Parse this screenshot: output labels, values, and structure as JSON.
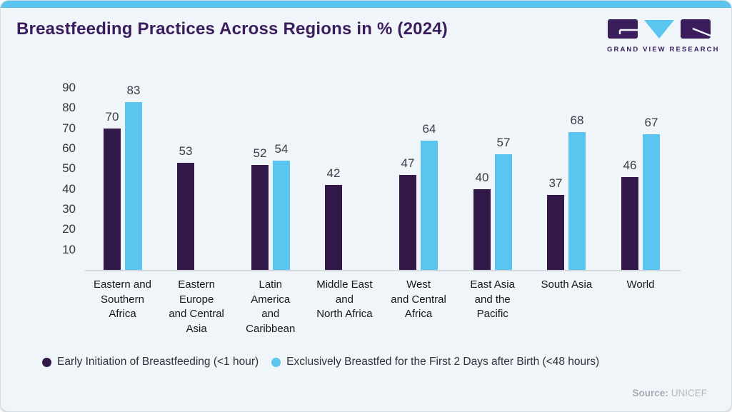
{
  "header": {
    "title": "Breastfeeding Practices Across Regions in % (2024)",
    "brand": "GRAND VIEW RESEARCH"
  },
  "chart_data": {
    "type": "bar",
    "title": "Breastfeeding Practices Across Regions in % (2024)",
    "unit": "%",
    "categories": [
      "Eastern and Southern Africa",
      "Eastern Europe and Central Asia",
      "Latin America and Caribbean",
      "Middle East and North Africa",
      "West and Central Africa",
      "East Asia and the Pacific",
      "South Asia",
      "World"
    ],
    "label_lines": [
      [
        "Eastern and",
        "Southern",
        "Africa"
      ],
      [
        "Eastern",
        "Europe",
        "and Central",
        "Asia"
      ],
      [
        "Latin",
        "America",
        "and",
        "Caribbean"
      ],
      [
        "Middle East",
        "and",
        "North Africa"
      ],
      [
        "West",
        "and Central",
        "Africa"
      ],
      [
        "East Asia",
        "and the",
        "Pacific"
      ],
      [
        "South Asia"
      ],
      [
        "World"
      ]
    ],
    "series": [
      {
        "name": "Early Initiation of Breastfeeding (<1 hour)",
        "color": "#33184a",
        "values": [
          70,
          53,
          52,
          42,
          47,
          40,
          37,
          46
        ]
      },
      {
        "name": "Exclusively Breastfed for the First 2 Days after Birth (<48 hours)",
        "color": "#5ac6f0",
        "values": [
          83,
          null,
          54,
          null,
          64,
          57,
          68,
          67
        ]
      }
    ],
    "yticks": [
      10,
      20,
      30,
      40,
      50,
      60,
      70,
      80,
      90
    ],
    "ylim": [
      0,
      90
    ],
    "grid": false,
    "legend_position": "bottom"
  },
  "footer": {
    "source_label": "Source:",
    "source_value": "UNICEF"
  },
  "colors": {
    "accent_purple": "#33184a",
    "accent_blue": "#5ac6f0",
    "title_purple": "#3b1d5e",
    "card_bg": "#f0f5fa",
    "top_strip": "#5ac3ee"
  }
}
